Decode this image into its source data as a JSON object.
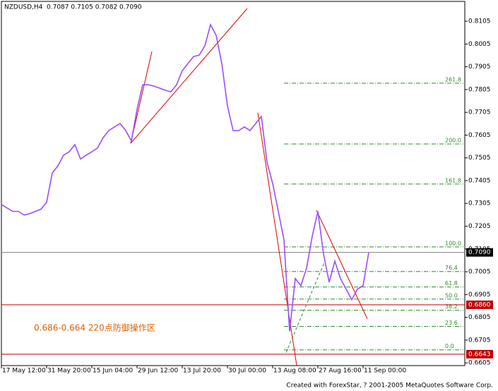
{
  "chart_data": {
    "type": "line",
    "title": "NZDUSD,H4",
    "quote": "0.7087 0.7105 0.7082 0.7090",
    "annotation": "0.686-0.664 220点防御操作区",
    "footer": "Created with ForexStar, ? 2001-2005 MetaQuotes Software Corp.",
    "x": [
      0,
      1,
      2,
      3,
      4,
      5,
      6,
      7,
      8,
      9,
      10,
      11,
      12,
      13,
      14,
      15,
      16,
      17,
      18,
      19,
      20,
      21,
      22,
      23,
      24,
      25,
      26,
      27,
      28,
      29,
      30,
      31,
      32,
      33,
      34,
      35,
      36,
      37,
      38,
      39,
      40,
      41,
      42,
      43,
      44,
      45,
      46,
      47,
      48,
      49,
      50,
      51,
      52,
      53,
      54,
      55,
      56,
      57,
      58,
      59,
      60,
      61,
      62,
      63,
      64,
      65
    ],
    "series": [
      {
        "name": "NZDUSD",
        "color": "#9b4dff",
        "values": [
          0.73,
          0.7285,
          0.727,
          0.727,
          0.7254,
          0.726,
          0.727,
          0.728,
          0.731,
          0.7439,
          0.747,
          0.7517,
          0.7532,
          0.7563,
          0.75,
          0.7517,
          0.7532,
          0.7548,
          0.7594,
          0.7625,
          0.7641,
          0.7656,
          0.7625,
          0.7579,
          0.7718,
          0.7826,
          0.7826,
          0.782,
          0.7811,
          0.7802,
          0.7795,
          0.7826,
          0.7888,
          0.7919,
          0.795,
          0.7956,
          0.7997,
          0.809,
          0.8043,
          0.7919,
          0.7733,
          0.7625,
          0.7625,
          0.7641,
          0.7625,
          0.7656,
          0.7687,
          0.7486,
          0.7393,
          0.727,
          0.7145,
          0.6743,
          0.6975,
          0.6944,
          0.7021,
          0.7161,
          0.727,
          0.7083,
          0.6959,
          0.7052,
          0.6975,
          0.6929,
          0.6882,
          0.6929,
          0.6944,
          0.709
        ]
      }
    ],
    "xlim": [
      0,
      82
    ],
    "ylim": [
      0.6593,
      0.8192
    ],
    "xticks": [
      {
        "value": 0,
        "label": "17 May 12:00"
      },
      {
        "value": 8,
        "label": "31 May 20:00"
      },
      {
        "value": 16,
        "label": "15 Jun 04:00"
      },
      {
        "value": 24,
        "label": "29 Jun 12:00"
      },
      {
        "value": 32,
        "label": "13 Jul 20:00"
      },
      {
        "value": 40,
        "label": "30 Jul 00:00"
      },
      {
        "value": 48,
        "label": "13 Aug 08:00"
      },
      {
        "value": 56,
        "label": "27 Aug 16:00"
      },
      {
        "value": 64,
        "label": "11 Sep 00:00"
      }
    ],
    "yticks": [
      0.6605,
      0.6705,
      0.6805,
      0.6905,
      0.7005,
      0.7105,
      0.7205,
      0.7305,
      0.7405,
      0.7505,
      0.7605,
      0.7705,
      0.7805,
      0.7905,
      0.8005,
      0.8105
    ],
    "fib_color": "#2e8b2e",
    "fib_levels": [
      {
        "value": 0.7833,
        "label": "261.8"
      },
      {
        "value": 0.7566,
        "label": "200.0"
      },
      {
        "value": 0.739,
        "label": "161.8"
      },
      {
        "value": 0.7114,
        "label": "100.0"
      },
      {
        "value": 0.7006,
        "label": "76.4"
      },
      {
        "value": 0.6938,
        "label": "61.8"
      },
      {
        "value": 0.6885,
        "label": "50.0"
      },
      {
        "value": 0.6836,
        "label": "38.2"
      },
      {
        "value": 0.6765,
        "label": "23.6"
      },
      {
        "value": 0.6662,
        "label": "0.0"
      }
    ],
    "hlines": [
      {
        "value": 0.686,
        "label": "0.6860",
        "color": "#c00000"
      },
      {
        "value": 0.6643,
        "label": "0.6643",
        "color": "#c00000"
      }
    ],
    "current_price": {
      "value": 0.709,
      "label": "0.7090",
      "color": "#808080"
    },
    "trendlines": [
      {
        "color": "#e00000",
        "x": [
          22.875,
          26.625
        ],
        "values": [
          0.7569,
          0.7972
        ]
      },
      {
        "color": "#e00000",
        "x": [
          22.875,
          43.5
        ],
        "values": [
          0.7569,
          0.8161
        ]
      },
      {
        "color": "#e00000",
        "x": [
          45.375,
          52.25
        ],
        "values": [
          0.7703,
          0.6594
        ]
      },
      {
        "color": "#e00000",
        "x": [
          55.75,
          64.75
        ],
        "values": [
          0.7275,
          0.6798
        ]
      },
      {
        "color": "#2e8b2e",
        "x": [
          50.375,
          57.25
        ],
        "values": [
          0.665,
          0.7052
        ]
      }
    ]
  }
}
